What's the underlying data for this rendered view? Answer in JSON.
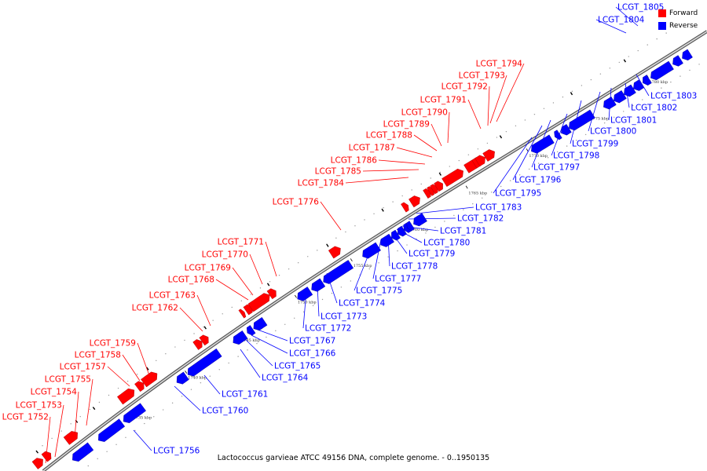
{
  "caption": "Lactococcus garvieae ATCC 49156 DNA, complete genome. - 0..1950135",
  "legend": [
    {
      "label": "Forward",
      "color": "#ff0000"
    },
    {
      "label": "Reverse",
      "color": "#0000ff"
    }
  ],
  "colors": {
    "forward": "#ff0000",
    "reverse": "#0000ff",
    "backbone": "#777777"
  },
  "ticks": [
    "1735 kbp",
    "1740 kbp",
    "1745 kbp",
    "1750 kbp",
    "1755 kbp",
    "1760 kbp",
    "1765 kbp",
    "1770 kbp",
    "1775 kbp",
    "1780 kbp"
  ],
  "forward_genes": [
    "LCGT_1752",
    "LCGT_1753",
    "LCGT_1754",
    "LCGT_1755",
    "LCGT_1757",
    "LCGT_1758",
    "LCGT_1759",
    "LCGT_1762",
    "LCGT_1763",
    "LCGT_1768",
    "LCGT_1769",
    "LCGT_1770",
    "LCGT_1771",
    "LCGT_1776",
    "LCGT_1784",
    "LCGT_1785",
    "LCGT_1786",
    "LCGT_1787",
    "LCGT_1788",
    "LCGT_1789",
    "LCGT_1790",
    "LCGT_1791",
    "LCGT_1792",
    "LCGT_1793",
    "LCGT_1794"
  ],
  "reverse_genes": [
    "LCGT_1756",
    "LCGT_1760",
    "LCGT_1761",
    "LCGT_1764",
    "LCGT_1765",
    "LCGT_1766",
    "LCGT_1767",
    "LCGT_1772",
    "LCGT_1773",
    "LCGT_1774",
    "LCGT_1775",
    "LCGT_1777",
    "LCGT_1778",
    "LCGT_1779",
    "LCGT_1780",
    "LCGT_1781",
    "LCGT_1782",
    "LCGT_1783",
    "LCGT_1795",
    "LCGT_1796",
    "LCGT_1797",
    "LCGT_1798",
    "LCGT_1799",
    "LCGT_1800",
    "LCGT_1801",
    "LCGT_1802",
    "LCGT_1803",
    "LCGT_1804",
    "LCGT_1805"
  ]
}
